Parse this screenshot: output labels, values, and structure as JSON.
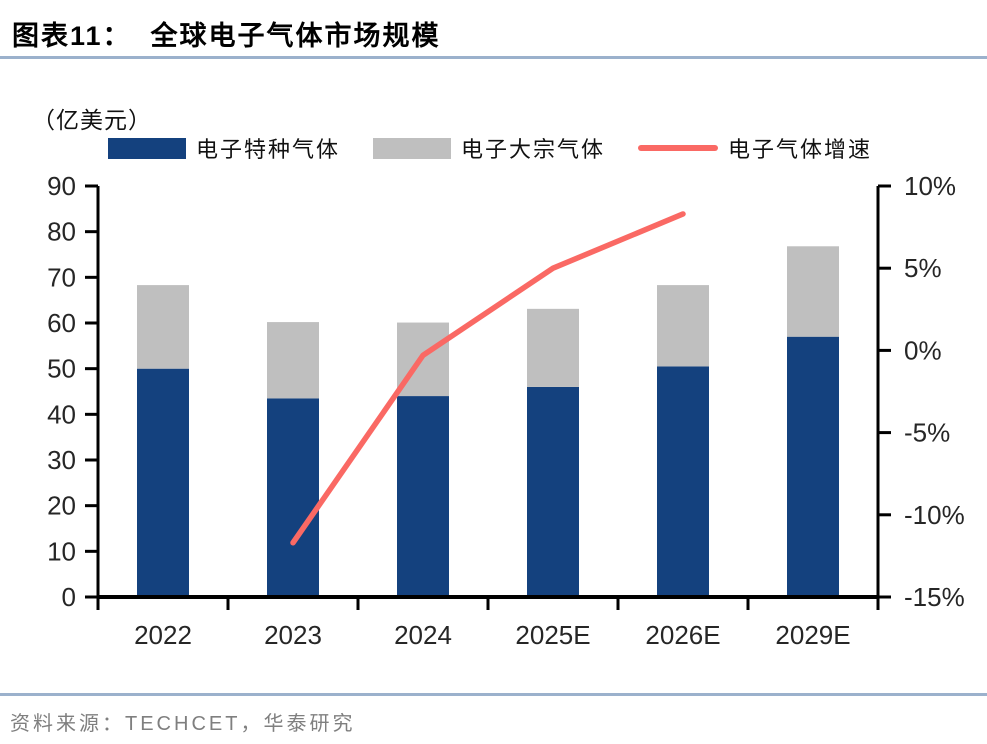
{
  "header": {
    "title": "图表11：  全球电子气体市场规模"
  },
  "unit_label": "（亿美元）",
  "legend": [
    {
      "label": "电子特种气体",
      "marker": "box",
      "color": "#14417E"
    },
    {
      "label": "电子大宗气体",
      "marker": "box",
      "color": "#BFBFBF"
    },
    {
      "label": "电子气体增速",
      "marker": "line",
      "color": "#FA6964"
    }
  ],
  "footer": {
    "source": "资料来源：TECHCET，华泰研究"
  },
  "colors": {
    "specialty_bar": "#14417E",
    "bulk_bar": "#BFBFBF",
    "growth_line": "#FA6964",
    "axis": "#000000",
    "tick_label": "#262626",
    "rule": "#9BB1CC"
  },
  "chart_data": {
    "type": "bar",
    "subtype": "stacked-bars-with-line",
    "title": "全球电子气体市场规模",
    "unit": "亿美元",
    "categories": [
      "2022",
      "2023",
      "2024",
      "2025E",
      "2026E",
      "2029E"
    ],
    "series": [
      {
        "name": "电子特种气体",
        "type": "bar",
        "stack": true,
        "axis": "left",
        "color": "#14417E",
        "values": [
          50,
          43.5,
          44,
          46,
          50.5,
          57
        ]
      },
      {
        "name": "电子大宗气体",
        "type": "bar",
        "stack": true,
        "axis": "left",
        "color": "#BFBFBF",
        "values": [
          18.3,
          16.7,
          16.1,
          17.1,
          17.8,
          19.8
        ]
      },
      {
        "name": "电子气体增速",
        "type": "line",
        "axis": "right",
        "color": "#FA6964",
        "values": [
          null,
          -11.7,
          -0.3,
          5.0,
          8.3,
          null
        ]
      }
    ],
    "totals": [
      68.3,
      60.2,
      60.1,
      63.1,
      68.3,
      76.8
    ],
    "left_axis": {
      "min": 0,
      "max": 90,
      "step": 10,
      "suffix": ""
    },
    "right_axis": {
      "min": -15,
      "max": 10,
      "step": 5,
      "suffix": "%"
    },
    "legend_position": "top",
    "grid": false
  }
}
